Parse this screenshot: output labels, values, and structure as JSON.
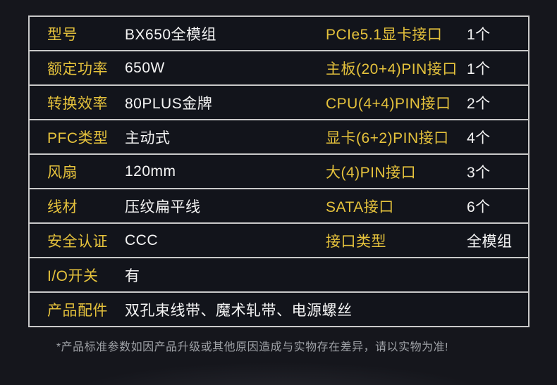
{
  "colors": {
    "page_bg": "#15161c",
    "row_bg": "#12141b",
    "border": "#c9c9c9",
    "label": "#e5c23c",
    "value": "#f4f4f4",
    "footer_text": "#9fa2a7"
  },
  "spec_table": {
    "rows": [
      {
        "label1": "型号",
        "value1": "BX650全模组",
        "label2": "PCIe5.1显卡接口",
        "value2": "1个"
      },
      {
        "label1": "额定功率",
        "value1": "650W",
        "label2": "主板(20+4)PIN接口",
        "value2": "1个"
      },
      {
        "label1": "转换效率",
        "value1": "80PLUS金牌",
        "label2": "CPU(4+4)PIN接口",
        "value2": "2个"
      },
      {
        "label1": "PFC类型",
        "value1": "主动式",
        "label2": "显卡(6+2)PIN接口",
        "value2": "4个"
      },
      {
        "label1": "风扇",
        "value1": "120mm",
        "label2": "大(4)PIN接口",
        "value2": "3个"
      },
      {
        "label1": "线材",
        "value1": "压纹扁平线",
        "label2": "SATA接口",
        "value2": "6个"
      },
      {
        "label1": "安全认证",
        "value1": "CCC",
        "label2": "接口类型",
        "value2": "全模组"
      },
      {
        "label1": "I/O开关",
        "value1": "有",
        "label2": "",
        "value2": ""
      },
      {
        "label1": "产品配件",
        "value1": "双孔束线带、魔术轧带、电源螺丝",
        "label2": "",
        "value2": ""
      }
    ]
  },
  "page": {
    "footer_note": "*产品标准参数如因产品升级或其他原因造成与实物存在差异，请以实物为准!"
  }
}
